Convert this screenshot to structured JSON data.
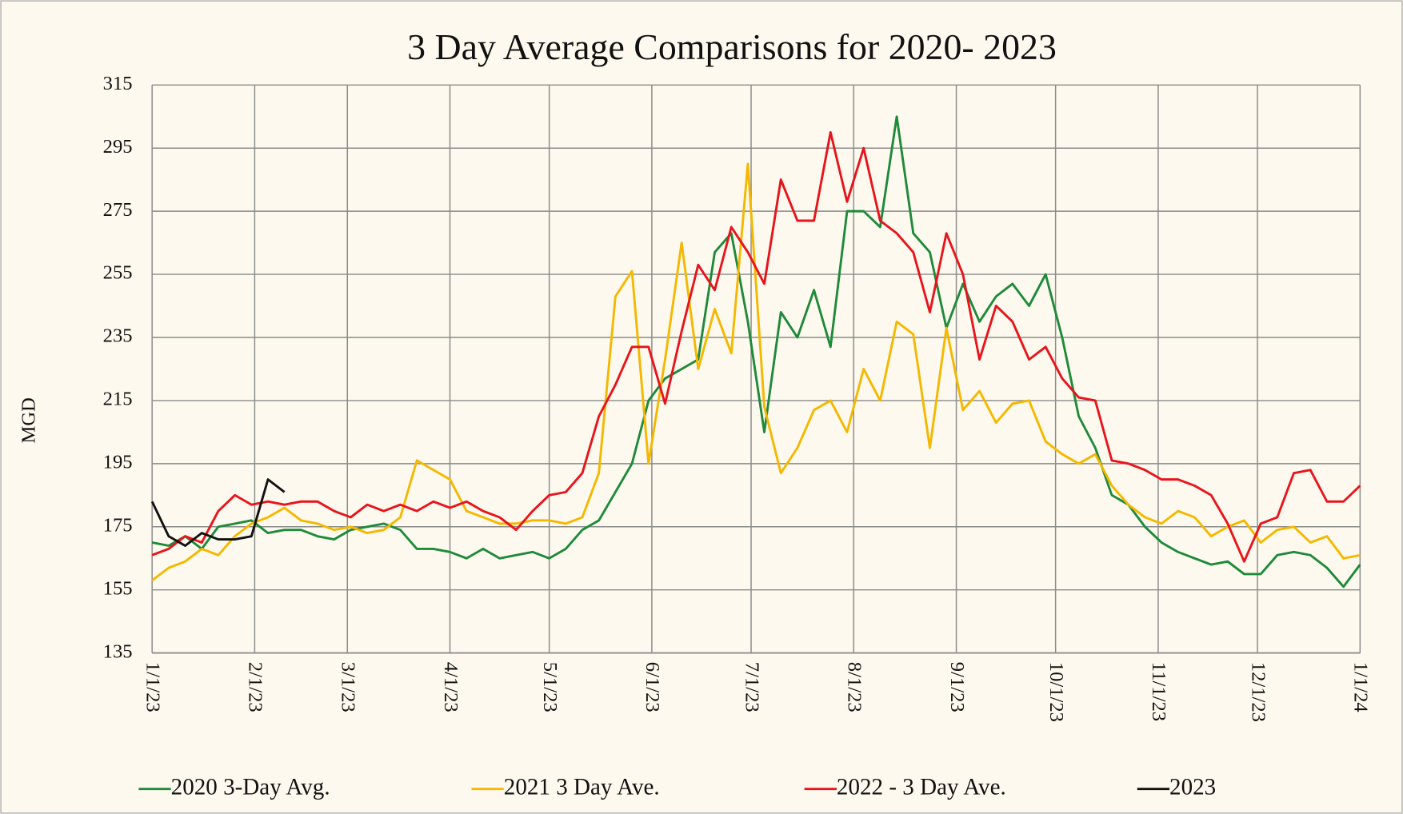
{
  "chart_data": {
    "type": "line",
    "title": "3 Day Average Comparisons for 2020- 2023",
    "y_label": "MGD",
    "x": [
      "1/1/23",
      "1/6/23",
      "1/11/23",
      "1/16/23",
      "1/21/23",
      "1/26/23",
      "1/31/23",
      "2/5/23",
      "2/10/23",
      "2/15/23",
      "2/20/23",
      "2/25/23",
      "3/2/23",
      "3/7/23",
      "3/12/23",
      "3/17/23",
      "3/22/23",
      "3/27/23",
      "4/1/23",
      "4/6/23",
      "4/11/23",
      "4/16/23",
      "4/21/23",
      "4/26/23",
      "5/1/23",
      "5/6/23",
      "5/11/23",
      "5/16/23",
      "5/21/23",
      "5/26/23",
      "5/31/23",
      "6/5/23",
      "6/10/23",
      "6/15/23",
      "6/20/23",
      "6/25/23",
      "6/30/23",
      "7/5/23",
      "7/10/23",
      "7/15/23",
      "7/20/23",
      "7/25/23",
      "7/30/23",
      "8/4/23",
      "8/9/23",
      "8/14/23",
      "8/19/23",
      "8/24/23",
      "8/29/23",
      "9/3/23",
      "9/8/23",
      "9/13/23",
      "9/18/23",
      "9/23/23",
      "9/28/23",
      "10/3/23",
      "10/8/23",
      "10/13/23",
      "10/18/23",
      "10/23/23",
      "10/28/23",
      "11/2/23",
      "11/7/23",
      "11/12/23",
      "11/17/23",
      "11/22/23",
      "11/27/23",
      "12/2/23",
      "12/7/23",
      "12/12/23",
      "12/17/23",
      "12/22/23",
      "12/27/23",
      "1/1/24"
    ],
    "series": [
      {
        "name": "2020 3-Day Avg.",
        "color": "#1e8a3a",
        "values": [
          170,
          169,
          172,
          168,
          175,
          176,
          177,
          173,
          174,
          174,
          172,
          171,
          174,
          175,
          176,
          174,
          168,
          168,
          167,
          165,
          168,
          165,
          166,
          167,
          165,
          168,
          174,
          177,
          186,
          195,
          215,
          222,
          225,
          228,
          262,
          268,
          240,
          205,
          243,
          235,
          250,
          232,
          275,
          275,
          270,
          305,
          268,
          262,
          238,
          252,
          240,
          248,
          252,
          245,
          255,
          235,
          210,
          200,
          185,
          182,
          175,
          170,
          167,
          165,
          163,
          164,
          160,
          160,
          166,
          167,
          166,
          162,
          156,
          163
        ]
      },
      {
        "name": "2021 3 Day Ave.",
        "color": "#f5b800",
        "values": [
          158,
          162,
          164,
          168,
          166,
          172,
          176,
          178,
          181,
          177,
          176,
          174,
          175,
          173,
          174,
          178,
          196,
          193,
          190,
          180,
          178,
          176,
          176,
          177,
          177,
          176,
          178,
          192,
          248,
          256,
          195,
          228,
          265,
          225,
          244,
          230,
          290,
          213,
          192,
          200,
          212,
          215,
          205,
          225,
          215,
          240,
          236,
          200,
          238,
          212,
          218,
          208,
          214,
          215,
          202,
          198,
          195,
          198,
          188,
          182,
          178,
          176,
          180,
          178,
          172,
          175,
          177,
          170,
          174,
          175,
          170,
          172,
          165,
          166
        ]
      },
      {
        "name": "2022 - 3 Day Ave.",
        "color": "#e8141c",
        "values": [
          166,
          168,
          172,
          170,
          180,
          185,
          182,
          183,
          182,
          183,
          183,
          180,
          178,
          182,
          180,
          182,
          180,
          183,
          181,
          183,
          180,
          178,
          174,
          180,
          185,
          186,
          192,
          210,
          220,
          232,
          232,
          214,
          237,
          258,
          250,
          270,
          262,
          252,
          285,
          272,
          272,
          300,
          278,
          295,
          272,
          268,
          262,
          243,
          268,
          255,
          228,
          245,
          240,
          228,
          232,
          222,
          216,
          215,
          196,
          195,
          193,
          190,
          190,
          188,
          185,
          176,
          164,
          176,
          178,
          192,
          193,
          183,
          183,
          188
        ]
      },
      {
        "name": "2023",
        "color": "#111111",
        "values": [
          183,
          172,
          169,
          173,
          171,
          171,
          172,
          190,
          186,
          null,
          null,
          null,
          null,
          null,
          null,
          null,
          null,
          null,
          null,
          null,
          null,
          null,
          null,
          null,
          null,
          null,
          null,
          null,
          null,
          null,
          null,
          null,
          null,
          null,
          null,
          null,
          null,
          null,
          null,
          null,
          null,
          null,
          null,
          null,
          null,
          null,
          null,
          null,
          null,
          null,
          null,
          null,
          null,
          null,
          null,
          null,
          null,
          null,
          null,
          null,
          null,
          null,
          null,
          null,
          null,
          null,
          null,
          null,
          null,
          null,
          null,
          null,
          null,
          null
        ]
      }
    ],
    "xlim": [
      "1/1/23",
      "1/1/24"
    ],
    "xticks": [
      "1/1/23",
      "2/1/23",
      "3/1/23",
      "4/1/23",
      "5/1/23",
      "6/1/23",
      "7/1/23",
      "8/1/23",
      "9/1/23",
      "10/1/23",
      "11/1/23",
      "12/1/23",
      "1/1/24"
    ],
    "ylim": [
      135,
      315
    ],
    "yticks": [
      135,
      155,
      175,
      195,
      215,
      235,
      255,
      275,
      295,
      315
    ],
    "grid": true,
    "legend": "bottom"
  }
}
